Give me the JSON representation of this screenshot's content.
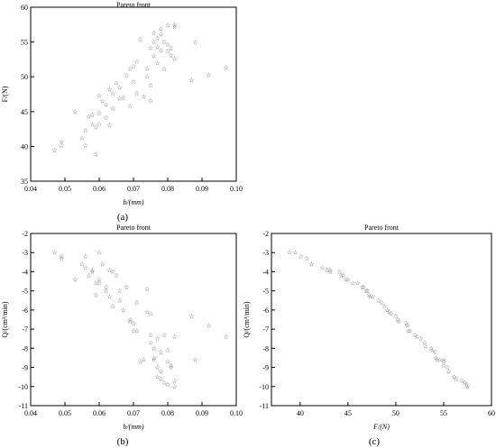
{
  "chart_data": [
    {
      "id": "a",
      "type": "scatter",
      "title": "Pareto front",
      "xlabel": "b/(mm)",
      "ylabel": "F/(N)",
      "panel_label": "(a)",
      "marker": "☆",
      "xlim": [
        0.04,
        0.1
      ],
      "ylim": [
        35,
        60
      ],
      "xticks": [
        "0.04",
        "0.05",
        "0.06",
        "0.07",
        "0.08",
        "0.09",
        "0.10"
      ],
      "yticks": [
        "35",
        "40",
        "45",
        "50",
        "55",
        "60"
      ],
      "x": [
        0.047,
        0.049,
        0.049,
        0.053,
        0.055,
        0.056,
        0.056,
        0.057,
        0.058,
        0.058,
        0.059,
        0.059,
        0.06,
        0.06,
        0.06,
        0.061,
        0.062,
        0.062,
        0.063,
        0.063,
        0.064,
        0.064,
        0.065,
        0.066,
        0.066,
        0.067,
        0.068,
        0.069,
        0.069,
        0.07,
        0.07,
        0.071,
        0.071,
        0.072,
        0.073,
        0.074,
        0.074,
        0.075,
        0.075,
        0.075,
        0.076,
        0.076,
        0.076,
        0.077,
        0.077,
        0.077,
        0.078,
        0.078,
        0.078,
        0.079,
        0.079,
        0.08,
        0.08,
        0.08,
        0.081,
        0.081,
        0.082,
        0.082,
        0.082,
        0.087,
        0.088,
        0.092,
        0.097
      ],
      "y": [
        39.5,
        40.1,
        40.7,
        45.0,
        41.2,
        42.3,
        40.1,
        44.3,
        43.2,
        44.5,
        42.8,
        38.9,
        47.3,
        44.8,
        43.2,
        46.5,
        46.0,
        44.1,
        48.2,
        43.1,
        47.6,
        45.5,
        49.1,
        48.5,
        46.9,
        47.0,
        50.2,
        51.1,
        45.8,
        51.5,
        49.3,
        52.2,
        47.6,
        55.4,
        47.2,
        50.0,
        51.2,
        46.6,
        48.8,
        54.2,
        55.0,
        56.3,
        53.0,
        54.3,
        55.5,
        52.0,
        56.1,
        53.8,
        56.9,
        55.0,
        51.1,
        57.4,
        53.7,
        54.6,
        53.1,
        54.1,
        57.5,
        52.6,
        57.2,
        49.5,
        55.0,
        50.3,
        51.3
      ]
    },
    {
      "id": "b",
      "type": "scatter",
      "title": "Pareto front",
      "xlabel": "b/(mm)",
      "ylabel": "Q/(cm³/min)",
      "panel_label": "(b)",
      "marker": "☆",
      "xlim": [
        0.04,
        0.1
      ],
      "ylim": [
        -11,
        -2
      ],
      "xticks": [
        "0.04",
        "0.05",
        "0.06",
        "0.07",
        "0.08",
        "0.09",
        "0.10"
      ],
      "yticks": [
        "-11",
        "-10",
        "-9",
        "-8",
        "-7",
        "-6",
        "-5",
        "-4",
        "-3",
        "-2"
      ],
      "x": [
        0.047,
        0.049,
        0.049,
        0.053,
        0.055,
        0.056,
        0.056,
        0.057,
        0.058,
        0.058,
        0.059,
        0.059,
        0.06,
        0.06,
        0.06,
        0.061,
        0.062,
        0.062,
        0.063,
        0.063,
        0.064,
        0.064,
        0.065,
        0.066,
        0.066,
        0.067,
        0.068,
        0.069,
        0.069,
        0.07,
        0.07,
        0.071,
        0.071,
        0.072,
        0.073,
        0.074,
        0.074,
        0.075,
        0.075,
        0.075,
        0.076,
        0.076,
        0.076,
        0.077,
        0.077,
        0.077,
        0.078,
        0.078,
        0.078,
        0.079,
        0.079,
        0.08,
        0.08,
        0.08,
        0.081,
        0.081,
        0.082,
        0.082,
        0.082,
        0.087,
        0.088,
        0.092,
        0.097
      ],
      "y": [
        -3.0,
        -3.2,
        -3.3,
        -4.4,
        -3.6,
        -3.8,
        -3.2,
        -4.2,
        -3.9,
        -4.0,
        -4.6,
        -5.2,
        -3.0,
        -4.4,
        -4.6,
        -3.6,
        -4.8,
        -5.0,
        -3.9,
        -5.3,
        -4.0,
        -5.8,
        -4.2,
        -5.5,
        -5.0,
        -6.0,
        -4.8,
        -6.5,
        -6.6,
        -6.7,
        -7.1,
        -5.6,
        -7.1,
        -8.7,
        -8.6,
        -4.9,
        -6.1,
        -6.2,
        -7.3,
        -7.7,
        -8.5,
        -8.6,
        -8.0,
        -9.0,
        -9.5,
        -7.5,
        -9.2,
        -8.2,
        -9.6,
        -7.3,
        -9.8,
        -8.1,
        -9.9,
        -8.7,
        -8.9,
        -9.0,
        -7.4,
        -9.7,
        -10.0,
        -6.3,
        -8.6,
        -6.8,
        -7.4
      ]
    },
    {
      "id": "c",
      "type": "scatter",
      "title": "Pareto front",
      "xlabel": "F/(N)",
      "ylabel": "Q/(cm³/min)",
      "panel_label": "(c)",
      "marker": "☆",
      "xlim": [
        37,
        60
      ],
      "ylim": [
        -11,
        -2
      ],
      "xticks": [
        "40",
        "45",
        "50",
        "55",
        "60"
      ],
      "yticks": [
        "-11",
        "-10",
        "-9",
        "-8",
        "-7",
        "-6",
        "-5",
        "-4",
        "-3",
        "-2"
      ],
      "x": [
        38.9,
        39.5,
        40.1,
        40.7,
        41.2,
        42.3,
        42.8,
        43.1,
        43.2,
        44.1,
        44.3,
        44.5,
        44.8,
        45.0,
        45.5,
        46.0,
        46.5,
        46.6,
        46.9,
        47.0,
        47.2,
        47.3,
        47.6,
        48.2,
        48.5,
        48.8,
        49.1,
        49.3,
        49.5,
        50.0,
        50.2,
        50.3,
        51.1,
        51.2,
        51.3,
        51.5,
        52.0,
        52.2,
        52.6,
        53.0,
        53.1,
        53.7,
        53.8,
        54.1,
        54.2,
        54.3,
        54.6,
        55.0,
        55.0,
        55.0,
        55.4,
        55.5,
        56.1,
        56.3,
        56.9,
        57.2,
        57.4,
        57.5
      ],
      "y": [
        -3.0,
        -3.0,
        -3.2,
        -3.3,
        -3.6,
        -3.8,
        -3.9,
        -3.9,
        -4.0,
        -4.0,
        -4.2,
        -4.2,
        -4.4,
        -4.4,
        -4.6,
        -4.6,
        -4.8,
        -4.8,
        -5.0,
        -5.0,
        -5.2,
        -5.3,
        -5.3,
        -5.5,
        -5.6,
        -5.8,
        -6.0,
        -6.1,
        -6.2,
        -6.3,
        -6.5,
        -6.6,
        -6.7,
        -6.8,
        -7.1,
        -7.1,
        -7.3,
        -7.4,
        -7.5,
        -7.7,
        -7.9,
        -8.0,
        -8.1,
        -8.2,
        -8.5,
        -8.6,
        -8.6,
        -8.6,
        -8.7,
        -8.9,
        -9.0,
        -9.2,
        -9.5,
        -9.6,
        -9.7,
        -9.8,
        -9.9,
        -10.0
      ]
    }
  ]
}
